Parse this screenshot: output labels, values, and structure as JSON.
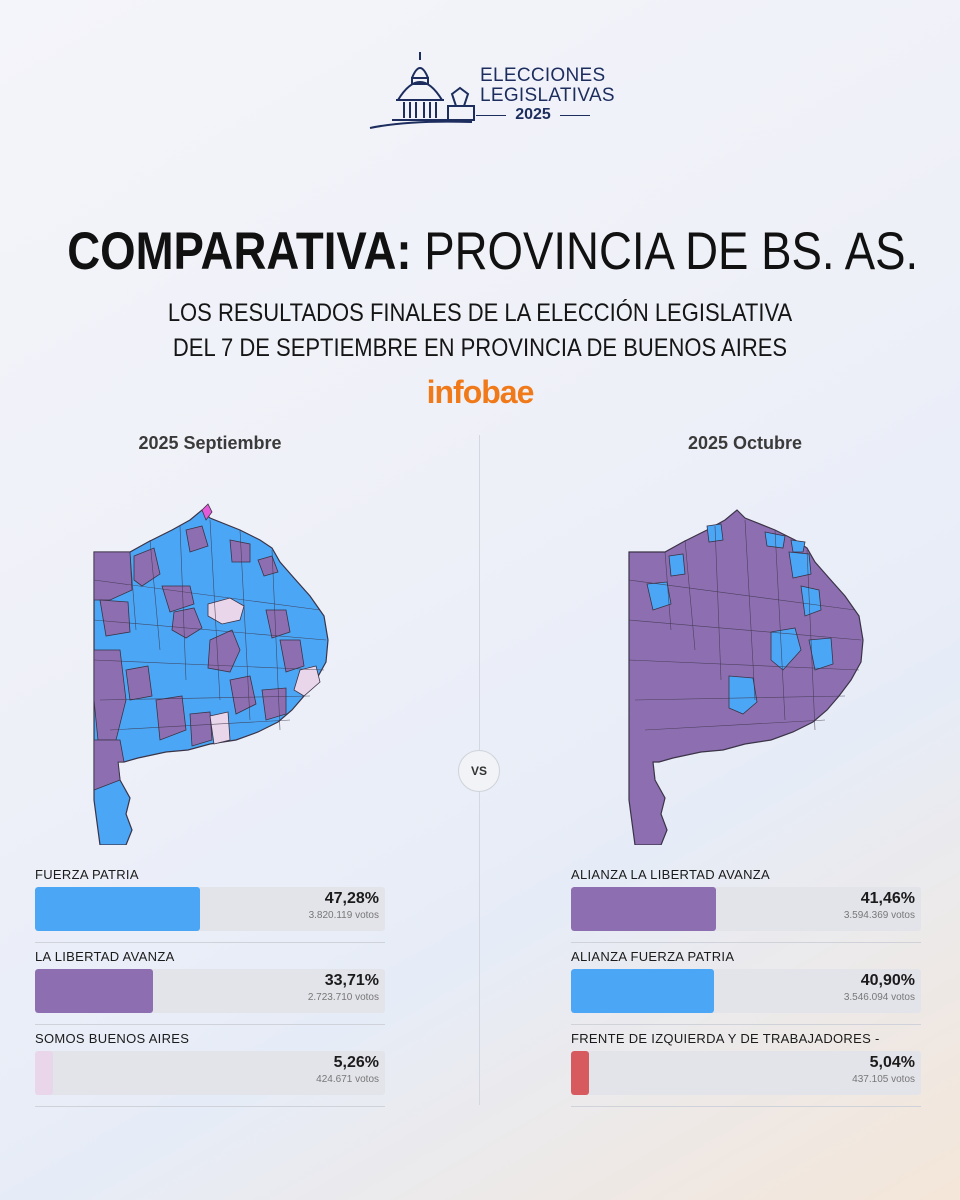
{
  "header": {
    "logo_line1": "ELECCIONES",
    "logo_line2": "LEGISLATIVAS",
    "logo_year": "2025",
    "title_bold": "COMPARATIVA:",
    "title_rest": "PROVINCIA DE BS. AS.",
    "subtitle_line1": "LOS RESULTADOS FINALES DE LA ELECCIÓN LEGISLATIVA",
    "subtitle_line2": "DEL 7 DE SEPTIEMBRE EN PROVINCIA DE BUENOS AIRES",
    "brand": "infobae"
  },
  "vs_label": "VS",
  "colors": {
    "fuerza_patria": "#4ba6f5",
    "libertad_avanza": "#8d6fb1",
    "somos_buenos_aires": "#ead6ea",
    "fit_unidad": "#d65a5e",
    "map_border": "#3b3347",
    "accent": "#f07a1a"
  },
  "chart_data": [
    {
      "type": "bar",
      "title": "2025 Septiembre",
      "series": [
        {
          "name": "FUERZA PATRIA",
          "value": 47.28,
          "label": "47,28%",
          "votes": "3.820.119 votos",
          "color": "#4ba6f5"
        },
        {
          "name": "LA LIBERTAD AVANZA",
          "value": 33.71,
          "label": "33,71%",
          "votes": "2.723.710 votos",
          "color": "#8d6fb1"
        },
        {
          "name": "SOMOS BUENOS AIRES",
          "value": 5.26,
          "label": "5,26%",
          "votes": "424.671 votos",
          "color": "#ead6ea"
        }
      ],
      "ylim": [
        0,
        100
      ]
    },
    {
      "type": "bar",
      "title": "2025 Octubre",
      "series": [
        {
          "name": "ALIANZA LA LIBERTAD AVANZA",
          "value": 41.46,
          "label": "41,46%",
          "votes": "3.594.369 votos",
          "color": "#8d6fb1"
        },
        {
          "name": "ALIANZA FUERZA PATRIA",
          "value": 40.9,
          "label": "40,90%",
          "votes": "3.546.094 votos",
          "color": "#4ba6f5"
        },
        {
          "name": "FRENTE DE IZQUIERDA Y DE TRABAJADORES - UNIDAD",
          "value": 5.04,
          "label": "5,04%",
          "votes": "437.105 votos",
          "color": "#d65a5e"
        }
      ],
      "ylim": [
        0,
        100
      ]
    }
  ]
}
